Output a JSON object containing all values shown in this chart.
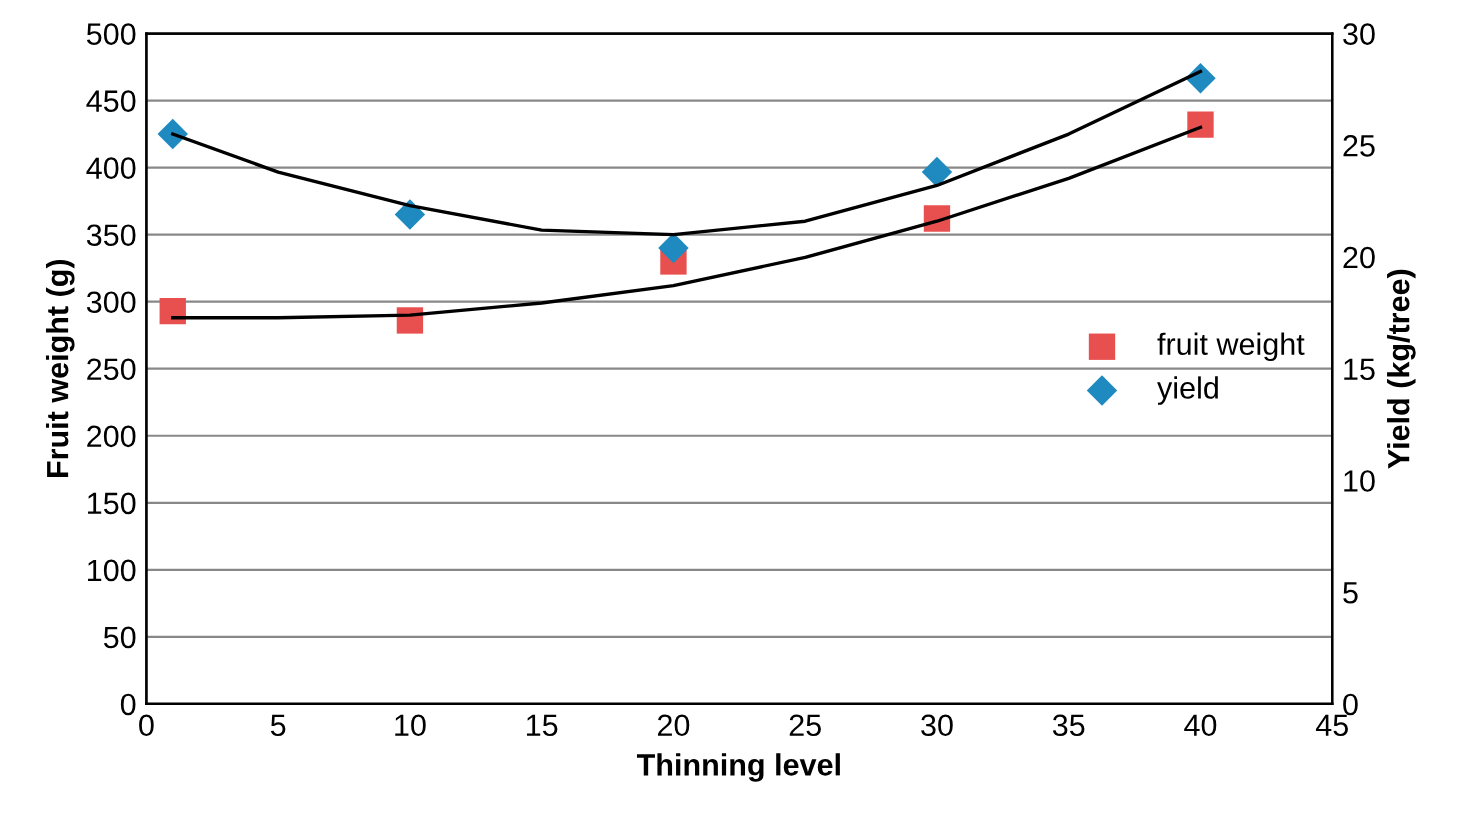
{
  "chart_data": {
    "type": "scatter",
    "xlabel": "Thinning level",
    "ylabel": "Fruit weight (g)",
    "y2label": "Yield (kg/tree)",
    "xlim": [
      0,
      45
    ],
    "xticks": [
      0,
      5,
      10,
      15,
      20,
      25,
      30,
      35,
      40,
      45
    ],
    "ylim": [
      0,
      500
    ],
    "yticks": [
      0,
      50,
      100,
      150,
      200,
      250,
      300,
      350,
      400,
      450,
      500
    ],
    "y2lim": [
      0,
      30
    ],
    "y2ticks": [
      0,
      5,
      10,
      15,
      20,
      25,
      30
    ],
    "grid": "y",
    "legend": "center right",
    "series": [
      {
        "name": "fruit weight",
        "marker": "square",
        "color": "#e8504f",
        "x": [
          1,
          10,
          20,
          30,
          40
        ],
        "values": [
          293,
          286,
          330,
          362,
          432
        ]
      },
      {
        "name": "yield",
        "marker": "diamond",
        "color": "#1f8ac0",
        "axis": "y2",
        "x": [
          1,
          10,
          20,
          30,
          40
        ],
        "values": [
          25.5,
          21.9,
          20.4,
          23.8,
          28.0
        ]
      },
      {
        "type": "line",
        "marker": "none",
        "color": "#000000",
        "x": [
          1,
          5,
          10,
          15,
          20,
          25,
          30,
          35,
          40
        ],
        "values": [
          288,
          288,
          290,
          299,
          312,
          333,
          360,
          392,
          430
        ]
      },
      {
        "type": "line",
        "marker": "none",
        "color": "#000000",
        "axis": "y2",
        "x": [
          1,
          5,
          10,
          15,
          20,
          25,
          30,
          35,
          40
        ],
        "values": [
          25.5,
          23.8,
          22.3,
          21.2,
          21.0,
          21.6,
          23.2,
          25.5,
          28.3
        ]
      }
    ]
  }
}
